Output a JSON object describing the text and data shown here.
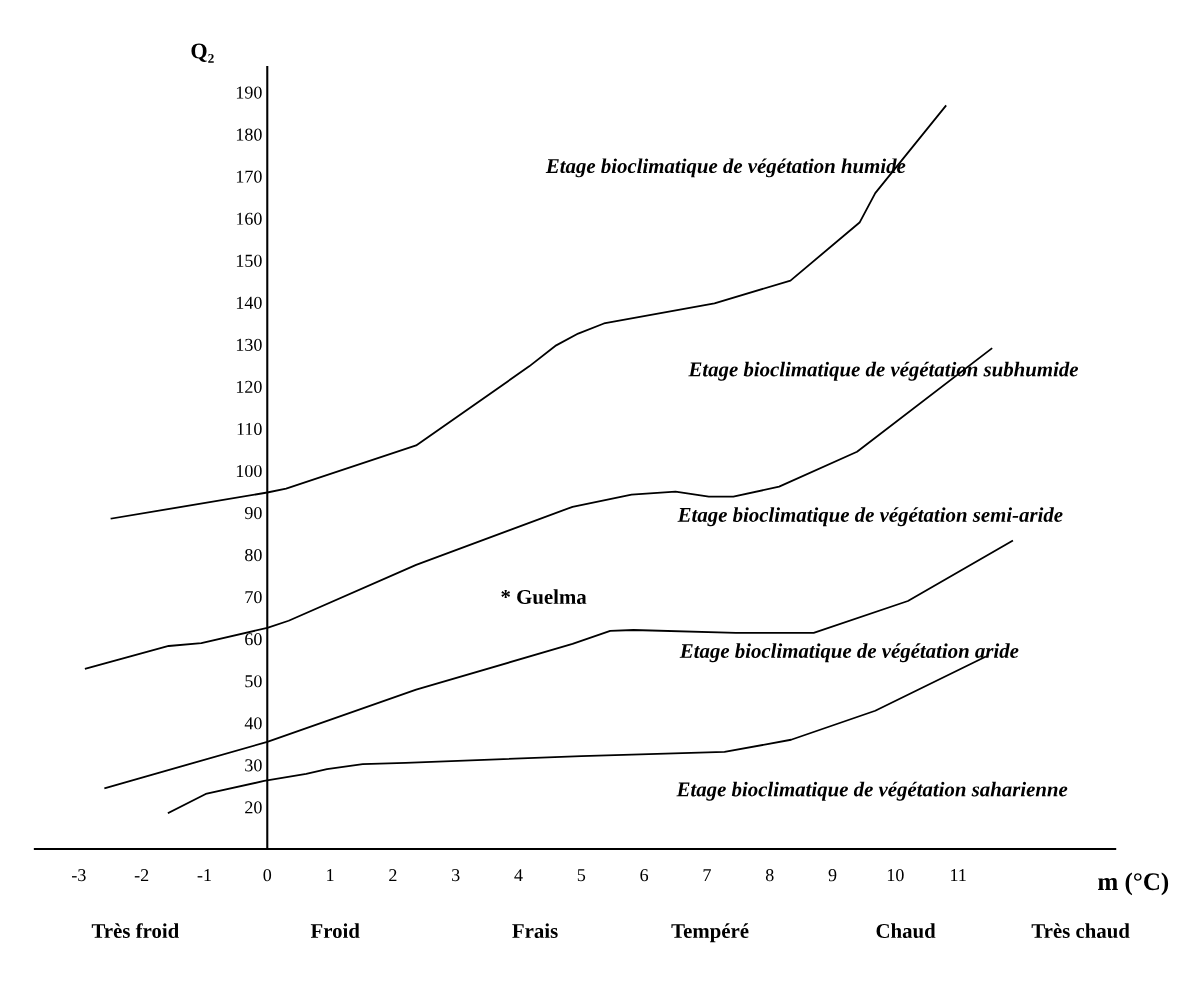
{
  "chart_data": {
    "type": "line",
    "xlabel": "m (°C)",
    "ylabel": "Q₂",
    "xlim": [
      -3.7,
      13.5
    ],
    "ylim": [
      10,
      196
    ],
    "xticks": [
      -3,
      -2,
      -1,
      0,
      1,
      2,
      3,
      4,
      5,
      6,
      7,
      8,
      9,
      10,
      11
    ],
    "yticks": [
      20,
      30,
      40,
      50,
      60,
      70,
      80,
      90,
      100,
      110,
      120,
      130,
      140,
      150,
      160,
      170,
      180,
      190
    ],
    "grid": false,
    "legend": false,
    "marker": "none",
    "line_style": "solid",
    "series": [
      {
        "color": "#000000",
        "x": [
          -2.48,
          0,
          0.3,
          2.37,
          4.17,
          4.6,
          4.95,
          5.36,
          7.12,
          8.33,
          9.43,
          9.68,
          10.8
        ],
        "values": [
          88.6,
          94.8,
          95.7,
          106,
          124.8,
          129.8,
          132.6,
          135,
          139.8,
          145.2,
          159,
          166,
          186.7
        ]
      },
      {
        "color": "#000000",
        "x": [
          -2.89,
          -1.57,
          -1.05,
          0,
          0.34,
          2.37,
          4.86,
          5.8,
          6.5,
          7.03,
          7.42,
          8.15,
          9.39,
          11.53
        ],
        "values": [
          52.9,
          58.3,
          59,
          62.6,
          64.3,
          77.6,
          91.4,
          94.3,
          95,
          93.8,
          93.8,
          96.2,
          104.5,
          129
        ]
      },
      {
        "color": "#000000",
        "x": [
          -2.58,
          0,
          2.37,
          4.86,
          5.46,
          5.83,
          7.46,
          8.7,
          10.2,
          11.86
        ],
        "values": [
          24.5,
          35.5,
          47.9,
          58.8,
          61.9,
          62.1,
          61.4,
          61.4,
          69,
          83.3
        ]
      },
      {
        "color": "#000000",
        "x": [
          -1.57,
          -0.98,
          -0.05,
          0.62,
          0.95,
          1.52,
          2.2,
          5,
          7.28,
          8.34,
          9.68,
          11.43
        ],
        "values": [
          18.6,
          23.1,
          26.2,
          27.9,
          29,
          30.2,
          30.5,
          32.1,
          33.1,
          36,
          42.9,
          55.7
        ]
      }
    ],
    "annotations": [
      "Etage bioclimatique de végétation humide",
      "Etage bioclimatique de végétation subhumide",
      "Etage bioclimatique de végétation semi-aride",
      "* Guelma",
      "Etage bioclimatique de végétation aride",
      "Etage bioclimatique de végétation saharienne",
      "Très froid",
      "Froid",
      "Frais",
      "Tempéré",
      "Chaud",
      "Très chaud"
    ]
  }
}
